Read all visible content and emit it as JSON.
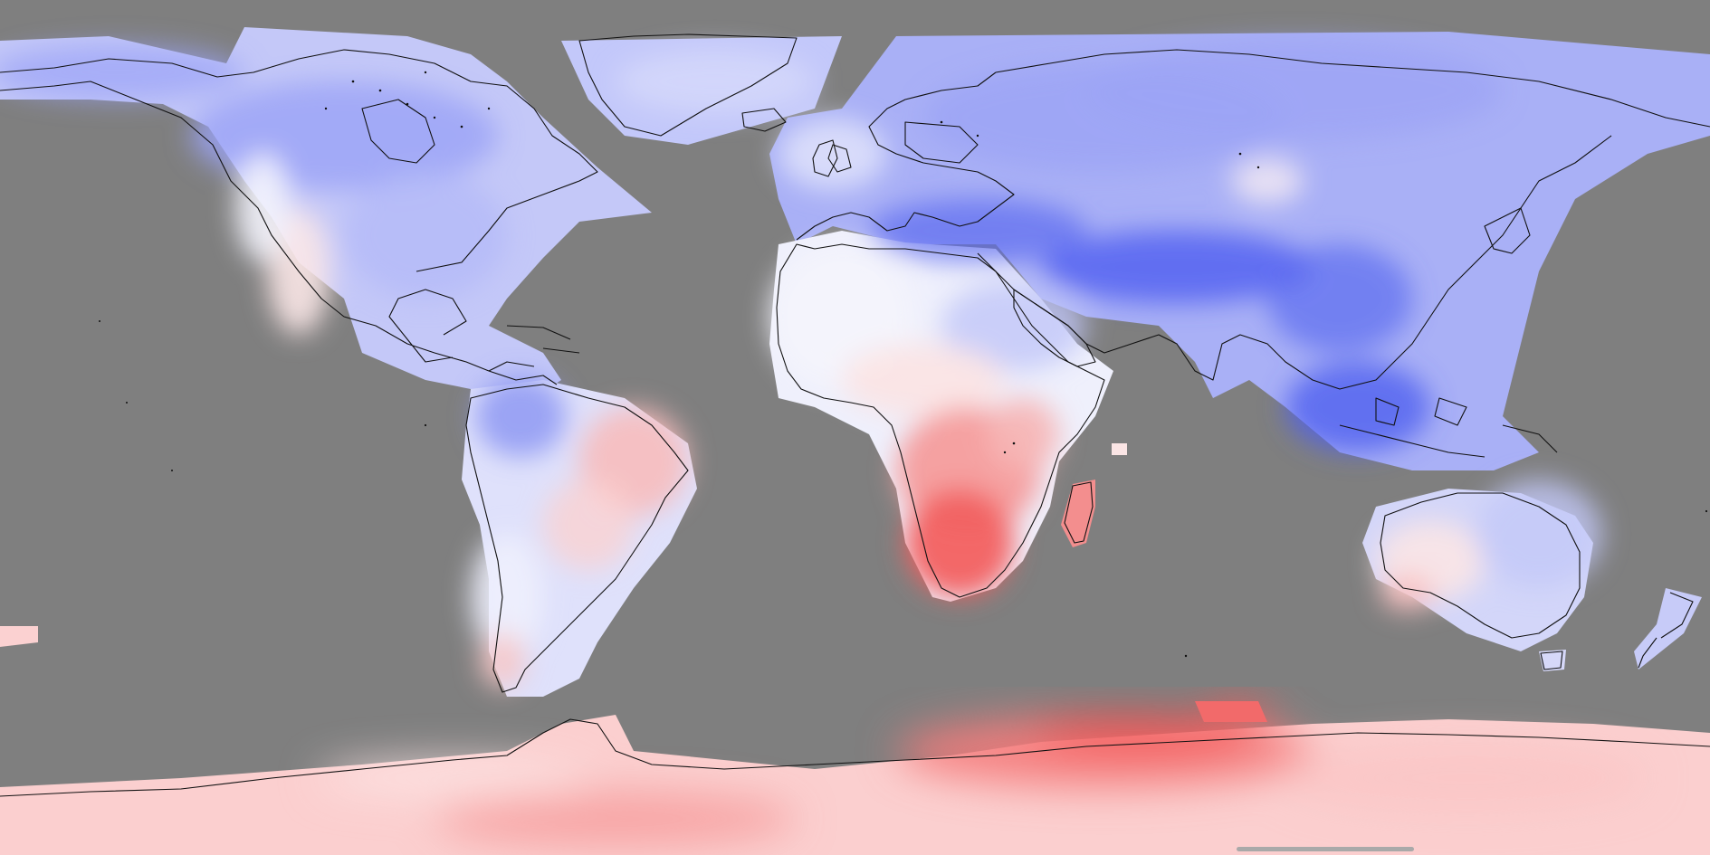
{
  "map": {
    "projection": "equirectangular",
    "ocean_color": "#7f7f7f",
    "coastline_color": "#111111",
    "diverging_palette": {
      "strong_negative": "#3f4ff0",
      "negative": "#8c96f4",
      "light_negative": "#c9cdfa",
      "neutral": "#f6f6fb",
      "light_positive": "#fbd4d4",
      "positive": "#f79a9a",
      "strong_positive": "#f54a4a"
    },
    "regions": [
      {
        "name": "north-america",
        "value": "light_negative"
      },
      {
        "name": "greenland",
        "value": "light_negative"
      },
      {
        "name": "south-america",
        "value": "light_negative"
      },
      {
        "name": "eastern-brazil",
        "value": "light_positive"
      },
      {
        "name": "europe-asia",
        "value": "negative"
      },
      {
        "name": "himalaya-band",
        "value": "strong_negative"
      },
      {
        "name": "north-africa",
        "value": "neutral"
      },
      {
        "name": "southern-africa",
        "value": "strong_positive"
      },
      {
        "name": "madagascar",
        "value": "positive"
      },
      {
        "name": "australia",
        "value": "light_negative"
      },
      {
        "name": "new-zealand",
        "value": "light_negative"
      },
      {
        "name": "antarctica",
        "value": "light_positive"
      },
      {
        "name": "east-antarctic-coast",
        "value": "strong_positive"
      }
    ]
  }
}
